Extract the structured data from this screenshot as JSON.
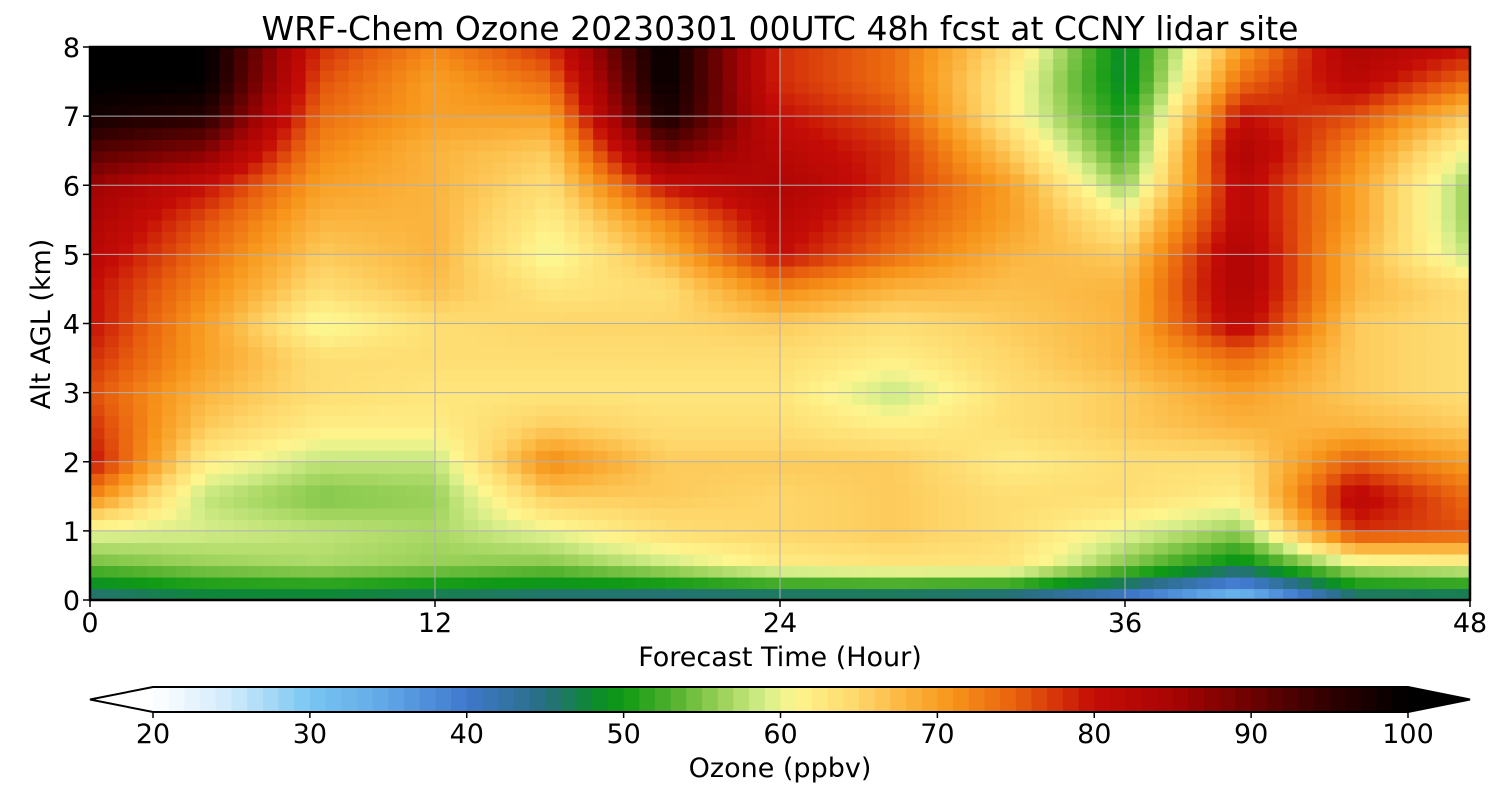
{
  "chart_data": {
    "type": "heatmap",
    "title": "WRF-Chem Ozone  20230301 00UTC 48h fcst at CCNY lidar site",
    "xlabel": "Forecast Time (Hour)",
    "ylabel": "Alt AGL (km)",
    "xlim": [
      0,
      48
    ],
    "ylim": [
      0,
      8
    ],
    "x_ticks": [
      0,
      12,
      24,
      36,
      48
    ],
    "y_ticks": [
      0,
      1,
      2,
      3,
      4,
      5,
      6,
      7,
      8
    ],
    "grid": true,
    "z_label": "Ozone  (ppbv)",
    "z_range": [
      20,
      100
    ],
    "colorbar_ticks": [
      20,
      30,
      40,
      50,
      60,
      70,
      80,
      90,
      100
    ],
    "colorbar_extend": "both",
    "colorbar_location": "bottom",
    "x": [
      0,
      4,
      8,
      12,
      16,
      20,
      24,
      28,
      32,
      36,
      40,
      44,
      48
    ],
    "y": [
      0,
      0.5,
      1,
      1.5,
      2,
      2.5,
      3,
      3.5,
      4,
      4.5,
      5,
      5.5,
      6,
      6.5,
      7,
      7.5,
      8
    ],
    "z": [
      [
        44,
        46,
        46,
        45,
        44,
        43,
        43,
        43,
        42,
        38,
        30,
        44,
        44
      ],
      [
        54,
        56,
        57,
        56,
        55,
        58,
        62,
        63,
        63,
        55,
        48,
        58,
        60
      ],
      [
        60,
        59,
        58,
        57,
        60,
        64,
        65,
        66,
        64,
        60,
        56,
        78,
        76
      ],
      [
        72,
        58,
        55,
        56,
        66,
        66,
        65,
        66,
        64,
        64,
        62,
        82,
        74
      ],
      [
        80,
        62,
        58,
        58,
        72,
        66,
        66,
        66,
        62,
        64,
        64,
        75,
        70
      ],
      [
        78,
        66,
        62,
        62,
        66,
        64,
        64,
        62,
        64,
        66,
        68,
        68,
        66
      ],
      [
        76,
        68,
        64,
        63,
        63,
        63,
        63,
        58,
        64,
        66,
        70,
        66,
        64
      ],
      [
        78,
        70,
        64,
        64,
        64,
        64,
        64,
        62,
        65,
        68,
        74,
        66,
        64
      ],
      [
        80,
        70,
        60,
        64,
        65,
        65,
        66,
        64,
        66,
        68,
        82,
        66,
        64
      ],
      [
        80,
        72,
        64,
        67,
        63,
        64,
        72,
        68,
        67,
        68,
        84,
        68,
        64
      ],
      [
        82,
        74,
        66,
        68,
        60,
        68,
        80,
        74,
        68,
        66,
        84,
        68,
        58
      ],
      [
        84,
        76,
        68,
        68,
        62,
        72,
        82,
        76,
        70,
        62,
        82,
        70,
        56
      ],
      [
        86,
        80,
        70,
        68,
        64,
        80,
        84,
        78,
        70,
        56,
        82,
        70,
        56
      ],
      [
        92,
        88,
        72,
        68,
        66,
        90,
        82,
        78,
        66,
        52,
        84,
        72,
        60
      ],
      [
        98,
        96,
        74,
        70,
        70,
        98,
        80,
        76,
        62,
        50,
        80,
        76,
        66
      ],
      [
        100,
        100,
        76,
        70,
        74,
        100,
        78,
        74,
        62,
        48,
        74,
        82,
        74
      ],
      [
        100,
        100,
        78,
        72,
        78,
        100,
        78,
        74,
        64,
        48,
        70,
        84,
        80
      ]
    ],
    "colormap": [
      {
        "v": 20,
        "c": "#ffffff"
      },
      {
        "v": 25,
        "c": "#cfe9fa"
      },
      {
        "v": 30,
        "c": "#78c6f2"
      },
      {
        "v": 35,
        "c": "#5fa6e6"
      },
      {
        "v": 40,
        "c": "#3f78cc"
      },
      {
        "v": 45,
        "c": "#286e80"
      },
      {
        "v": 48,
        "c": "#0c8a30"
      },
      {
        "v": 50,
        "c": "#0f9a14"
      },
      {
        "v": 53,
        "c": "#4fb02c"
      },
      {
        "v": 56,
        "c": "#96cf56"
      },
      {
        "v": 59,
        "c": "#d6ee8a"
      },
      {
        "v": 61,
        "c": "#fef58e"
      },
      {
        "v": 65,
        "c": "#fed66a"
      },
      {
        "v": 68,
        "c": "#fbb43e"
      },
      {
        "v": 71,
        "c": "#f7951a"
      },
      {
        "v": 75,
        "c": "#e8600e"
      },
      {
        "v": 80,
        "c": "#c40c06"
      },
      {
        "v": 85,
        "c": "#a80404"
      },
      {
        "v": 90,
        "c": "#6c0202"
      },
      {
        "v": 95,
        "c": "#300000"
      },
      {
        "v": 100,
        "c": "#000000"
      }
    ]
  }
}
